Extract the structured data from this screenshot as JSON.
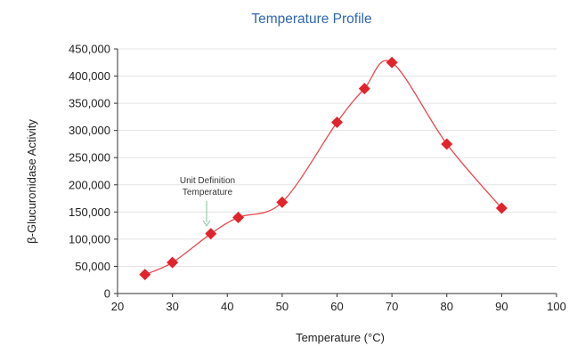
{
  "chart_data": {
    "type": "scatter",
    "title": "Temperature Profile",
    "xlabel": "Temperature (°C)",
    "ylabel": "β-Glucuronidase Activity",
    "xlim": [
      20,
      100
    ],
    "ylim": [
      0,
      450000
    ],
    "x_ticks": [
      20,
      30,
      40,
      50,
      60,
      70,
      80,
      90,
      100
    ],
    "x_tick_labels": [
      "20",
      "30",
      "40",
      "50",
      "60",
      "70",
      "80",
      "90",
      "100"
    ],
    "y_ticks": [
      0,
      50000,
      100000,
      150000,
      200000,
      250000,
      300000,
      350000,
      400000,
      450000
    ],
    "y_tick_labels": [
      "0",
      "50,000",
      "100,000",
      "150,000",
      "200,000",
      "250,000",
      "300,000",
      "350,000",
      "400,000",
      "450,000"
    ],
    "grid": "horizontal",
    "series": [
      {
        "x": [
          25,
          30,
          37,
          42,
          50,
          60,
          65,
          70,
          80,
          90
        ],
        "y": [
          35000,
          57000,
          110000,
          140000,
          168000,
          315000,
          377000,
          425000,
          275000,
          157000
        ],
        "marker": "diamond",
        "color": "#e0242b",
        "line": "smooth",
        "line_color": "#e8474c"
      }
    ],
    "annotation": {
      "lines": [
        "Unit Definition",
        "Temperature"
      ],
      "x": 37,
      "arrow_color": "#7dc59a"
    }
  }
}
